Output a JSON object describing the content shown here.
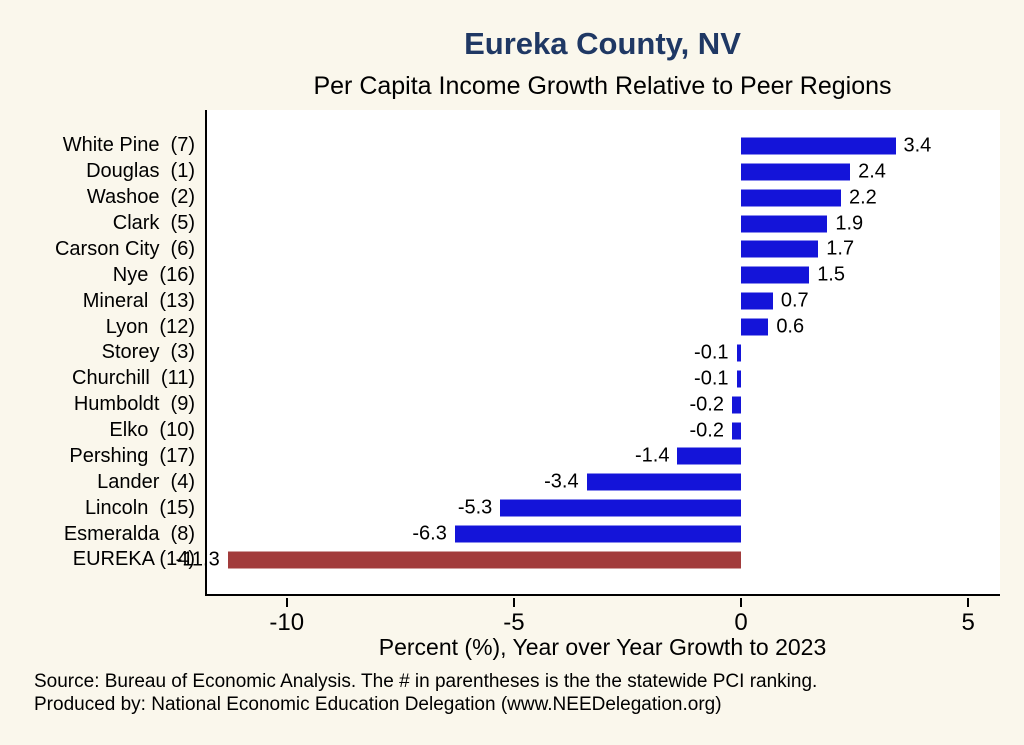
{
  "title": "Eureka County, NV",
  "subtitle": "Per Capita Income Growth Relative to Peer Regions",
  "xlabel": "Percent (%), Year over Year Growth to 2023",
  "source_line1": "Source: Bureau of Economic Analysis. The # in parentheses is the the statewide PCI ranking.",
  "source_line2": "Produced by: National Economic Education Delegation (www.NEEDelegation.org)",
  "colors": {
    "background": "#FAF7EC",
    "title": "#1F3864",
    "plot_background": "#FFFFFF",
    "axis": "#000000",
    "bar": "#1414D9",
    "highlight": "#A23C3C"
  },
  "chart_data": {
    "type": "bar",
    "orientation": "horizontal",
    "title": "Eureka County, NV",
    "subtitle": "Per Capita Income Growth Relative to Peer Regions",
    "xlabel": "Percent (%), Year over Year Growth to 2023",
    "categories": [
      "White Pine  (7)",
      "Douglas  (1)",
      "Washoe  (2)",
      "Clark  (5)",
      "Carson City  (6)",
      "Nye  (16)",
      "Mineral  (13)",
      "Lyon  (12)",
      "Storey  (3)",
      "Churchill  (11)",
      "Humboldt  (9)",
      "Elko  (10)",
      "Pershing  (17)",
      "Lander  (4)",
      "Lincoln  (15)",
      "Esmeralda  (8)",
      "EUREKA (14)"
    ],
    "values": [
      3.4,
      2.4,
      2.2,
      1.9,
      1.7,
      1.5,
      0.7,
      0.6,
      -0.1,
      -0.1,
      -0.2,
      -0.2,
      -1.4,
      -3.4,
      -5.3,
      -6.3,
      -11.3
    ],
    "value_labels": [
      "3.4",
      "2.4",
      "2.2",
      "1.9",
      "1.7",
      "1.5",
      "0.7",
      "0.6",
      "-0.1",
      "-0.1",
      "-0.2",
      "-0.2",
      "-1.4",
      "-3.4",
      "-5.3",
      "-6.3",
      "-11.3"
    ],
    "xlim": [
      -11.8,
      5.7
    ],
    "xticks": [
      -10,
      -5,
      0,
      5
    ],
    "xtick_labels": [
      "-10",
      "-5",
      "0",
      "5"
    ],
    "bar_color": "#1414D9",
    "highlight_index": 16,
    "highlight_color": "#A23C3C",
    "legend": "none",
    "grid": false
  }
}
